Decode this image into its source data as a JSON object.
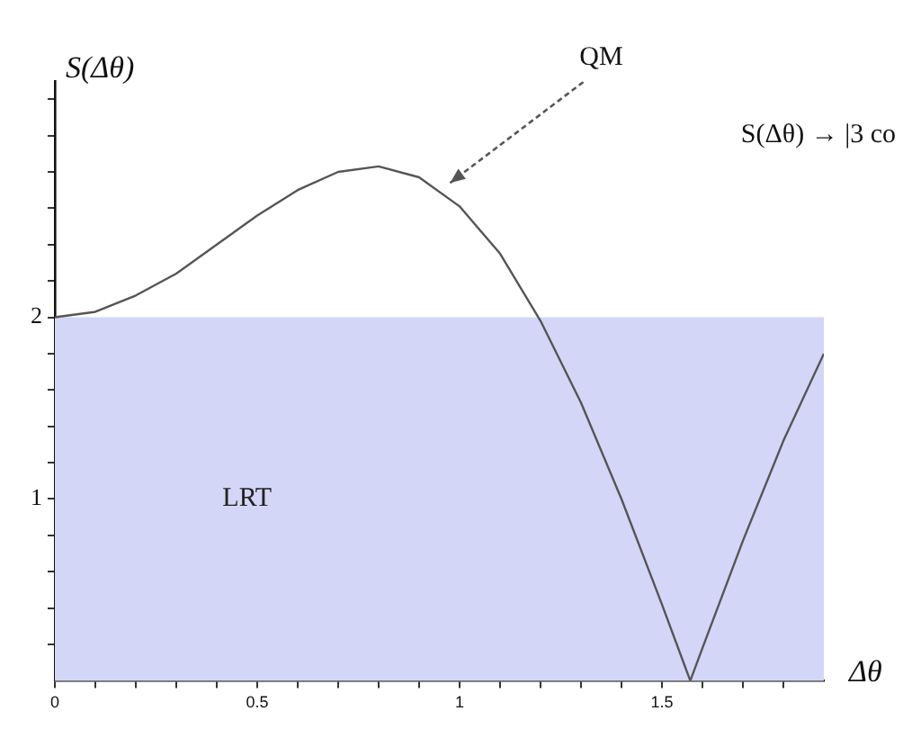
{
  "chart_data": {
    "type": "line",
    "xlabel": "Δθ",
    "ylabel": "S(Δθ)",
    "x": [
      0,
      0.1,
      0.2,
      0.3,
      0.4,
      0.5,
      0.6,
      0.7,
      0.8,
      0.9,
      1.0,
      1.1,
      1.2,
      1.3,
      1.4,
      1.5,
      1.57,
      1.6,
      1.7,
      1.8,
      1.9
    ],
    "series": [
      {
        "color": "#555555",
        "values": [
          2,
          2.03,
          2.12,
          2.24,
          2.4,
          2.56,
          2.7,
          2.8,
          2.83,
          2.77,
          2.61,
          2.35,
          1.98,
          1.53,
          1.0,
          0.42,
          0,
          0.18,
          0.77,
          1.32,
          1.8
        ]
      }
    ],
    "xlim": [
      0,
      1.9
    ],
    "ylim": [
      0,
      3.3
    ],
    "xticks": [
      0,
      {
        "value": 0.1,
        "label": null
      },
      {
        "value": 0.2,
        "label": null
      },
      {
        "value": 0.3,
        "label": null
      },
      {
        "value": 0.4,
        "label": null
      },
      0.5,
      {
        "value": 0.6,
        "label": null
      },
      {
        "value": 0.7,
        "label": null
      },
      {
        "value": 0.8,
        "label": null
      },
      {
        "value": 0.9,
        "label": null
      },
      1,
      {
        "value": 1.1,
        "label": null
      },
      {
        "value": 1.2,
        "label": null
      },
      {
        "value": 1.3,
        "label": null
      },
      {
        "value": 1.4,
        "label": null
      },
      1.5,
      {
        "value": 1.6,
        "label": null
      },
      {
        "value": 1.7,
        "label": null
      },
      {
        "value": 1.8,
        "label": null
      }
    ],
    "yticks": [
      {
        "value": 0.2,
        "label": null
      },
      {
        "value": 0.4,
        "label": null
      },
      {
        "value": 0.6,
        "label": null
      },
      {
        "value": 0.8,
        "label": null
      },
      1,
      {
        "value": 1.2,
        "label": null
      },
      {
        "value": 1.4,
        "label": null
      },
      {
        "value": 1.6,
        "label": null
      },
      {
        "value": 1.8,
        "label": null
      },
      2,
      {
        "value": 2.2,
        "label": null
      },
      {
        "value": 2.4,
        "label": null
      },
      {
        "value": 2.6,
        "label": null
      },
      {
        "value": 2.8,
        "label": null
      },
      {
        "value": 3.0,
        "label": null
      },
      {
        "value": 3.2,
        "label": null
      }
    ],
    "bands": [
      {
        "axis": "y",
        "from": 0,
        "to": 2,
        "label": "LRT",
        "color": "#d4d6f7"
      }
    ],
    "annotations": [
      "QM",
      "S(Δθ) → |3 co"
    ],
    "grid": false,
    "legend": false,
    "marker": "none",
    "line_style": "solid"
  }
}
